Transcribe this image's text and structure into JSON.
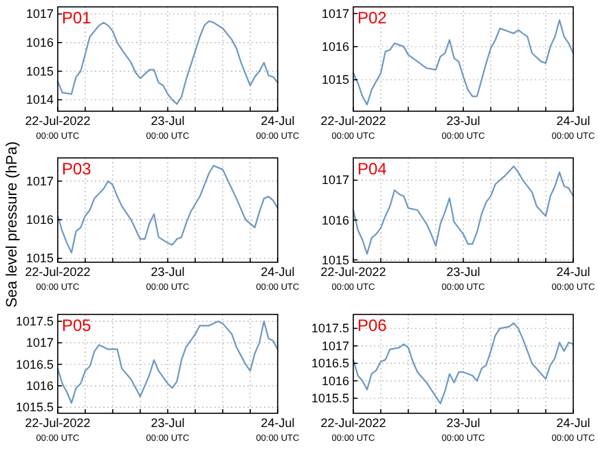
{
  "chart_data": [
    {
      "type": "line",
      "title": "P01",
      "xlim": [
        "2022-07-22T00:00",
        "2022-07-24T00:00"
      ],
      "ylim": [
        1013.6,
        1017.25
      ],
      "yticks": [
        1014,
        1015,
        1016,
        1017
      ],
      "grid": true,
      "xticks": [
        {
          "value": "2022-07-22T00:00",
          "label": "22-Jul-2022\n00:00 UTC"
        },
        {
          "value": "2022-07-22T06:00",
          "label": null
        },
        {
          "value": "2022-07-22T12:00",
          "label": null
        },
        {
          "value": "2022-07-22T18:00",
          "label": null
        },
        {
          "value": "2022-07-23T00:00",
          "label": "23-Jul\n00:00 UTC"
        },
        {
          "value": "2022-07-23T06:00",
          "label": null
        },
        {
          "value": "2022-07-23T12:00",
          "label": null
        },
        {
          "value": "2022-07-23T18:00",
          "label": null
        },
        {
          "value": "2022-07-24T00:00",
          "label": "24-Jul\n00:00 UTC"
        }
      ],
      "x": [
        "2022-07-22T00:00",
        "2022-07-22T01:00",
        "2022-07-22T03:00",
        "2022-07-22T04:00",
        "2022-07-22T05:00",
        "2022-07-22T06:00",
        "2022-07-22T07:00",
        "2022-07-22T09:00",
        "2022-07-22T10:00",
        "2022-07-22T11:00",
        "2022-07-22T12:00",
        "2022-07-22T13:00",
        "2022-07-22T14:00",
        "2022-07-22T16:00",
        "2022-07-22T17:00",
        "2022-07-22T18:00",
        "2022-07-22T19:00",
        "2022-07-22T20:00",
        "2022-07-22T21:00",
        "2022-07-22T22:00",
        "2022-07-22T23:00",
        "2022-07-23T00:00",
        "2022-07-23T01:00",
        "2022-07-23T02:00",
        "2022-07-23T03:00",
        "2022-07-23T04:00",
        "2022-07-23T05:00",
        "2022-07-23T06:00",
        "2022-07-23T07:00",
        "2022-07-23T08:00",
        "2022-07-23T09:00",
        "2022-07-23T10:00",
        "2022-07-23T12:00",
        "2022-07-23T14:00",
        "2022-07-23T15:00",
        "2022-07-23T16:00",
        "2022-07-23T17:00",
        "2022-07-23T18:00",
        "2022-07-23T19:00",
        "2022-07-23T20:00",
        "2022-07-23T21:00",
        "2022-07-23T22:00",
        "2022-07-23T23:00",
        "2022-07-24T00:00"
      ],
      "series": [
        {
          "color": "#6b98c4",
          "values": [
            1014.65,
            1014.25,
            1014.2,
            1014.8,
            1015.0,
            1015.6,
            1016.2,
            1016.6,
            1016.7,
            1016.6,
            1016.4,
            1016.0,
            1015.75,
            1015.3,
            1014.95,
            1014.75,
            1014.9,
            1015.05,
            1015.05,
            1014.6,
            1014.5,
            1014.2,
            1014.0,
            1013.85,
            1014.1,
            1014.7,
            1015.2,
            1015.7,
            1016.2,
            1016.6,
            1016.75,
            1016.7,
            1016.5,
            1016.1,
            1015.8,
            1015.3,
            1014.9,
            1014.5,
            1014.8,
            1015.0,
            1015.3,
            1014.85,
            1014.8,
            1014.6
          ]
        }
      ]
    },
    {
      "type": "line",
      "title": "P02",
      "xlim": [
        "2022-07-22T00:00",
        "2022-07-24T00:00"
      ],
      "ylim": [
        1014.05,
        1017.2
      ],
      "yticks": [
        1015,
        1016,
        1017
      ],
      "grid": true,
      "xticks": [
        {
          "value": "2022-07-22T00:00",
          "label": "22-Jul-2022\n00:00 UTC"
        },
        {
          "value": "2022-07-22T06:00",
          "label": null
        },
        {
          "value": "2022-07-22T12:00",
          "label": null
        },
        {
          "value": "2022-07-22T18:00",
          "label": null
        },
        {
          "value": "2022-07-23T00:00",
          "label": "23-Jul\n00:00 UTC"
        },
        {
          "value": "2022-07-23T06:00",
          "label": null
        },
        {
          "value": "2022-07-23T12:00",
          "label": null
        },
        {
          "value": "2022-07-23T18:00",
          "label": null
        },
        {
          "value": "2022-07-24T00:00",
          "label": "24-Jul\n00:00 UTC"
        }
      ],
      "x": [
        "2022-07-22T00:00",
        "2022-07-22T01:00",
        "2022-07-22T02:00",
        "2022-07-22T03:00",
        "2022-07-22T04:00",
        "2022-07-22T05:00",
        "2022-07-22T06:00",
        "2022-07-22T07:00",
        "2022-07-22T08:00",
        "2022-07-22T09:00",
        "2022-07-22T11:00",
        "2022-07-22T12:00",
        "2022-07-22T14:00",
        "2022-07-22T16:00",
        "2022-07-22T18:00",
        "2022-07-22T19:00",
        "2022-07-22T20:00",
        "2022-07-22T21:00",
        "2022-07-22T22:00",
        "2022-07-22T23:00",
        "2022-07-23T00:00",
        "2022-07-23T01:00",
        "2022-07-23T02:00",
        "2022-07-23T03:00",
        "2022-07-23T04:00",
        "2022-07-23T05:00",
        "2022-07-23T06:00",
        "2022-07-23T07:00",
        "2022-07-23T08:00",
        "2022-07-23T10:00",
        "2022-07-23T11:00",
        "2022-07-23T12:00",
        "2022-07-23T14:00",
        "2022-07-23T15:00",
        "2022-07-23T17:00",
        "2022-07-23T18:00",
        "2022-07-23T19:00",
        "2022-07-23T20:00",
        "2022-07-23T21:00",
        "2022-07-23T22:00",
        "2022-07-23T23:00",
        "2022-07-24T00:00"
      ],
      "series": [
        {
          "color": "#6b98c4",
          "values": [
            1015.2,
            1014.9,
            1014.5,
            1014.25,
            1014.7,
            1014.95,
            1015.2,
            1015.85,
            1015.9,
            1016.1,
            1016.0,
            1015.75,
            1015.55,
            1015.35,
            1015.3,
            1015.7,
            1015.8,
            1016.2,
            1015.65,
            1015.55,
            1015.1,
            1014.7,
            1014.5,
            1014.5,
            1015.0,
            1015.5,
            1015.95,
            1016.2,
            1016.55,
            1016.45,
            1016.4,
            1016.5,
            1016.3,
            1015.8,
            1015.55,
            1015.5,
            1016.0,
            1016.3,
            1016.8,
            1016.3,
            1016.1,
            1015.8
          ]
        }
      ]
    },
    {
      "type": "line",
      "title": "P03",
      "ylabel": "Sea level pressure (hPa)",
      "xlim": [
        "2022-07-22T00:00",
        "2022-07-24T00:00"
      ],
      "ylim": [
        1014.9,
        1017.6
      ],
      "yticks": [
        1015,
        1016,
        1017
      ],
      "grid": true,
      "xticks": [
        {
          "value": "2022-07-22T00:00",
          "label": "22-Jul-2022\n00:00 UTC"
        },
        {
          "value": "2022-07-22T06:00",
          "label": null
        },
        {
          "value": "2022-07-22T12:00",
          "label": null
        },
        {
          "value": "2022-07-22T18:00",
          "label": null
        },
        {
          "value": "2022-07-23T00:00",
          "label": "23-Jul\n00:00 UTC"
        },
        {
          "value": "2022-07-23T06:00",
          "label": null
        },
        {
          "value": "2022-07-23T12:00",
          "label": null
        },
        {
          "value": "2022-07-23T18:00",
          "label": null
        },
        {
          "value": "2022-07-24T00:00",
          "label": "24-Jul\n00:00 UTC"
        }
      ],
      "x": [
        "2022-07-22T00:00",
        "2022-07-22T01:00",
        "2022-07-22T02:00",
        "2022-07-22T03:00",
        "2022-07-22T04:00",
        "2022-07-22T05:00",
        "2022-07-22T06:00",
        "2022-07-22T07:00",
        "2022-07-22T08:00",
        "2022-07-22T10:00",
        "2022-07-22T11:00",
        "2022-07-22T12:00",
        "2022-07-22T13:00",
        "2022-07-22T14:00",
        "2022-07-22T16:00",
        "2022-07-22T18:00",
        "2022-07-22T19:00",
        "2022-07-22T20:00",
        "2022-07-22T21:00",
        "2022-07-22T22:00",
        "2022-07-23T00:00",
        "2022-07-23T01:00",
        "2022-07-23T02:00",
        "2022-07-23T03:00",
        "2022-07-23T04:00",
        "2022-07-23T05:00",
        "2022-07-23T07:00",
        "2022-07-23T09:00",
        "2022-07-23T10:00",
        "2022-07-23T12:00",
        "2022-07-23T13:00",
        "2022-07-23T15:00",
        "2022-07-23T17:00",
        "2022-07-23T19:00",
        "2022-07-23T20:00",
        "2022-07-23T21:00",
        "2022-07-23T22:00",
        "2022-07-23T23:00",
        "2022-07-24T00:00"
      ],
      "series": [
        {
          "color": "#6b98c4",
          "values": [
            1016.1,
            1015.7,
            1015.4,
            1015.15,
            1015.7,
            1015.8,
            1016.1,
            1016.25,
            1016.55,
            1016.8,
            1017.0,
            1016.9,
            1016.6,
            1016.35,
            1016.0,
            1015.5,
            1015.5,
            1015.9,
            1016.15,
            1015.55,
            1015.4,
            1015.35,
            1015.5,
            1015.55,
            1015.9,
            1016.2,
            1016.6,
            1017.2,
            1017.4,
            1017.3,
            1017.05,
            1016.55,
            1016.0,
            1015.8,
            1016.2,
            1016.55,
            1016.6,
            1016.5,
            1016.3
          ]
        }
      ]
    },
    {
      "type": "line",
      "title": "P04",
      "xlim": [
        "2022-07-22T00:00",
        "2022-07-24T00:00"
      ],
      "ylim": [
        1014.94,
        1017.56
      ],
      "yticks": [
        1015,
        1016,
        1017
      ],
      "grid": true,
      "xticks": [
        {
          "value": "2022-07-22T00:00",
          "label": "22-Jul-2022\n00:00 UTC"
        },
        {
          "value": "2022-07-22T06:00",
          "label": null
        },
        {
          "value": "2022-07-22T12:00",
          "label": null
        },
        {
          "value": "2022-07-22T18:00",
          "label": null
        },
        {
          "value": "2022-07-23T00:00",
          "label": "23-Jul\n00:00 UTC"
        },
        {
          "value": "2022-07-23T06:00",
          "label": null
        },
        {
          "value": "2022-07-23T12:00",
          "label": null
        },
        {
          "value": "2022-07-23T18:00",
          "label": null
        },
        {
          "value": "2022-07-24T00:00",
          "label": "24-Jul\n00:00 UTC"
        }
      ],
      "x": [
        "2022-07-22T00:00",
        "2022-07-22T01:00",
        "2022-07-22T02:00",
        "2022-07-22T03:00",
        "2022-07-22T04:00",
        "2022-07-22T05:00",
        "2022-07-22T06:00",
        "2022-07-22T07:00",
        "2022-07-22T08:00",
        "2022-07-22T09:00",
        "2022-07-22T10:00",
        "2022-07-22T11:00",
        "2022-07-22T12:00",
        "2022-07-22T14:00",
        "2022-07-22T16:00",
        "2022-07-22T17:00",
        "2022-07-22T18:00",
        "2022-07-22T19:00",
        "2022-07-22T20:00",
        "2022-07-22T21:00",
        "2022-07-22T22:00",
        "2022-07-23T00:00",
        "2022-07-23T01:00",
        "2022-07-23T02:00",
        "2022-07-23T03:00",
        "2022-07-23T04:00",
        "2022-07-23T05:00",
        "2022-07-23T06:00",
        "2022-07-23T07:00",
        "2022-07-23T09:00",
        "2022-07-23T11:00",
        "2022-07-23T12:00",
        "2022-07-23T13:00",
        "2022-07-23T15:00",
        "2022-07-23T16:00",
        "2022-07-23T18:00",
        "2022-07-23T19:00",
        "2022-07-23T20:00",
        "2022-07-23T21:00",
        "2022-07-23T22:00",
        "2022-07-23T23:00",
        "2022-07-24T00:00"
      ],
      "series": [
        {
          "color": "#6b98c4",
          "values": [
            1016.25,
            1015.75,
            1015.5,
            1015.15,
            1015.55,
            1015.65,
            1015.8,
            1016.1,
            1016.35,
            1016.75,
            1016.65,
            1016.6,
            1016.3,
            1016.25,
            1015.9,
            1015.65,
            1015.35,
            1015.9,
            1016.2,
            1016.55,
            1015.95,
            1015.65,
            1015.4,
            1015.4,
            1015.7,
            1016.15,
            1016.45,
            1016.6,
            1016.9,
            1017.1,
            1017.35,
            1017.2,
            1017.0,
            1016.7,
            1016.35,
            1016.1,
            1016.6,
            1016.85,
            1017.2,
            1016.85,
            1016.8,
            1016.6
          ]
        }
      ]
    },
    {
      "type": "line",
      "title": "P05",
      "xlim": [
        "2022-07-22T00:00",
        "2022-07-24T00:00"
      ],
      "ylim": [
        1015.36,
        1017.66
      ],
      "yticks": [
        1015.5,
        1016,
        1016.5,
        1017,
        1017.5
      ],
      "grid": true,
      "xticks": [
        {
          "value": "2022-07-22T00:00",
          "label": "22-Jul-2022\n00:00 UTC"
        },
        {
          "value": "2022-07-22T06:00",
          "label": null
        },
        {
          "value": "2022-07-22T12:00",
          "label": null
        },
        {
          "value": "2022-07-22T18:00",
          "label": null
        },
        {
          "value": "2022-07-23T00:00",
          "label": "23-Jul\n00:00 UTC"
        },
        {
          "value": "2022-07-23T06:00",
          "label": null
        },
        {
          "value": "2022-07-23T12:00",
          "label": null
        },
        {
          "value": "2022-07-23T18:00",
          "label": null
        },
        {
          "value": "2022-07-24T00:00",
          "label": "24-Jul\n00:00 UTC"
        }
      ],
      "x": [
        "2022-07-22T00:00",
        "2022-07-22T01:00",
        "2022-07-22T02:00",
        "2022-07-22T03:00",
        "2022-07-22T04:00",
        "2022-07-22T05:00",
        "2022-07-22T06:00",
        "2022-07-22T07:00",
        "2022-07-22T08:00",
        "2022-07-22T09:00",
        "2022-07-22T11:00",
        "2022-07-22T13:00",
        "2022-07-22T14:00",
        "2022-07-22T16:00",
        "2022-07-22T18:00",
        "2022-07-22T19:00",
        "2022-07-22T20:00",
        "2022-07-22T21:00",
        "2022-07-22T22:00",
        "2022-07-22T23:00",
        "2022-07-23T00:00",
        "2022-07-23T01:00",
        "2022-07-23T02:00",
        "2022-07-23T03:00",
        "2022-07-23T04:00",
        "2022-07-23T06:00",
        "2022-07-23T07:00",
        "2022-07-23T09:00",
        "2022-07-23T11:00",
        "2022-07-23T12:00",
        "2022-07-23T14:00",
        "2022-07-23T15:00",
        "2022-07-23T17:00",
        "2022-07-23T18:00",
        "2022-07-23T19:00",
        "2022-07-23T20:00",
        "2022-07-23T21:00",
        "2022-07-23T22:00",
        "2022-07-23T23:00",
        "2022-07-24T00:00"
      ],
      "series": [
        {
          "color": "#6b98c4",
          "values": [
            1016.4,
            1016.05,
            1015.85,
            1015.6,
            1015.95,
            1016.05,
            1016.35,
            1016.45,
            1016.8,
            1016.95,
            1016.85,
            1016.85,
            1016.4,
            1016.15,
            1015.75,
            1016.0,
            1016.25,
            1016.6,
            1016.35,
            1016.2,
            1016.05,
            1015.95,
            1016.1,
            1016.6,
            1016.9,
            1017.2,
            1017.4,
            1017.4,
            1017.5,
            1017.45,
            1017.2,
            1016.9,
            1016.5,
            1016.35,
            1016.75,
            1017.0,
            1017.5,
            1017.1,
            1017.05,
            1016.85
          ]
        }
      ]
    },
    {
      "type": "line",
      "title": "P06",
      "xlim": [
        "2022-07-22T00:00",
        "2022-07-24T00:00"
      ],
      "ylim": [
        1015.07,
        1017.9
      ],
      "yticks": [
        1015.5,
        1016,
        1016.5,
        1017,
        1017.5
      ],
      "grid": true,
      "xticks": [
        {
          "value": "2022-07-22T00:00",
          "label": "22-Jul-2022\n00:00 UTC"
        },
        {
          "value": "2022-07-22T06:00",
          "label": null
        },
        {
          "value": "2022-07-22T12:00",
          "label": null
        },
        {
          "value": "2022-07-22T18:00",
          "label": null
        },
        {
          "value": "2022-07-23T00:00",
          "label": "23-Jul\n00:00 UTC"
        },
        {
          "value": "2022-07-23T06:00",
          "label": null
        },
        {
          "value": "2022-07-23T12:00",
          "label": null
        },
        {
          "value": "2022-07-23T18:00",
          "label": null
        },
        {
          "value": "2022-07-24T00:00",
          "label": "24-Jul\n00:00 UTC"
        }
      ],
      "x": [
        "2022-07-22T00:00",
        "2022-07-22T01:00",
        "2022-07-22T02:00",
        "2022-07-22T03:00",
        "2022-07-22T04:00",
        "2022-07-22T05:00",
        "2022-07-22T06:00",
        "2022-07-22T07:00",
        "2022-07-22T08:00",
        "2022-07-22T10:00",
        "2022-07-22T11:00",
        "2022-07-22T12:00",
        "2022-07-22T13:00",
        "2022-07-22T14:00",
        "2022-07-22T16:00",
        "2022-07-22T18:00",
        "2022-07-22T19:00",
        "2022-07-22T20:00",
        "2022-07-22T21:00",
        "2022-07-22T22:00",
        "2022-07-22T23:00",
        "2022-07-23T00:00",
        "2022-07-23T01:00",
        "2022-07-23T02:00",
        "2022-07-23T03:00",
        "2022-07-23T04:00",
        "2022-07-23T05:00",
        "2022-07-23T06:00",
        "2022-07-23T07:00",
        "2022-07-23T08:00",
        "2022-07-23T10:00",
        "2022-07-23T11:00",
        "2022-07-23T12:00",
        "2022-07-23T13:00",
        "2022-07-23T14:00",
        "2022-07-23T15:00",
        "2022-07-23T17:00",
        "2022-07-23T18:00",
        "2022-07-23T19:00",
        "2022-07-23T20:00",
        "2022-07-23T21:00",
        "2022-07-23T22:00",
        "2022-07-23T23:00",
        "2022-07-24T00:00"
      ],
      "series": [
        {
          "color": "#6b98c4",
          "values": [
            1016.6,
            1016.15,
            1016.0,
            1015.75,
            1016.2,
            1016.3,
            1016.55,
            1016.6,
            1016.9,
            1016.95,
            1017.05,
            1016.95,
            1016.55,
            1016.25,
            1015.95,
            1015.55,
            1015.35,
            1015.7,
            1016.2,
            1015.95,
            1016.25,
            1016.25,
            1016.2,
            1016.15,
            1016.0,
            1016.35,
            1016.45,
            1016.85,
            1017.3,
            1017.5,
            1017.55,
            1017.65,
            1017.5,
            1017.2,
            1016.85,
            1016.5,
            1016.2,
            1016.05,
            1016.45,
            1016.65,
            1017.1,
            1016.85,
            1017.1,
            1017.05
          ]
        }
      ]
    }
  ]
}
